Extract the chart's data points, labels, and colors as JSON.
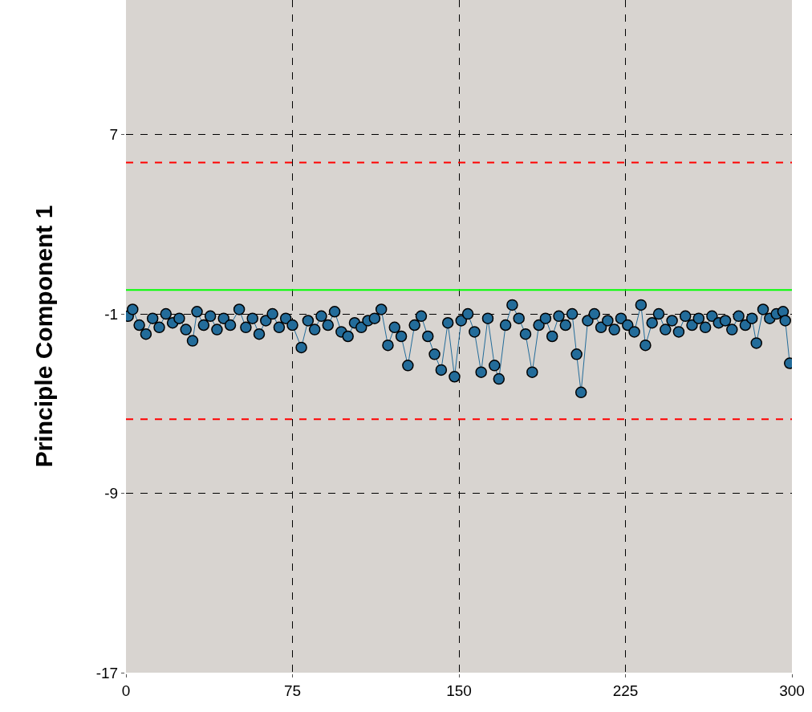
{
  "chart_data": {
    "type": "line",
    "ylabel": "Principle Component 1",
    "marker": "circle",
    "grid": true,
    "xlim": [
      0,
      300
    ],
    "xticks": [
      0,
      75,
      150,
      225,
      300
    ],
    "ylim": [
      -17,
      13
    ],
    "yticks": [
      7,
      -1,
      -9,
      -17
    ],
    "ref_lines": [
      {
        "axis": "y",
        "value": 5.75,
        "color": "#ff0000",
        "line_style": "dashed"
      },
      {
        "axis": "y",
        "value": -5.7,
        "color": "#ff0000",
        "line_style": "dashed"
      },
      {
        "axis": "y",
        "value": 0.07,
        "color": "#00ff00",
        "line_style": "solid"
      }
    ],
    "series": [
      {
        "color": "#236c9a",
        "x": [
          1,
          3,
          6,
          9,
          12,
          15,
          18,
          21,
          24,
          27,
          30,
          32,
          35,
          38,
          41,
          44,
          47,
          51,
          54,
          57,
          60,
          63,
          66,
          69,
          72,
          75,
          79,
          82,
          85,
          88,
          91,
          94,
          97,
          100,
          103,
          106,
          109,
          112,
          115,
          118,
          121,
          124,
          127,
          130,
          133,
          136,
          139,
          142,
          145,
          148,
          151,
          154,
          157,
          160,
          163,
          166,
          168,
          171,
          174,
          177,
          180,
          183,
          186,
          189,
          192,
          195,
          198,
          201,
          203,
          205,
          208,
          211,
          214,
          217,
          220,
          223,
          226,
          229,
          232,
          234,
          237,
          240,
          243,
          246,
          249,
          252,
          255,
          258,
          261,
          264,
          267,
          270,
          273,
          276,
          279,
          282,
          284,
          287,
          290,
          293,
          296,
          297,
          299
        ],
        "values": [
          -1.1,
          -0.8,
          -1.5,
          -1.9,
          -1.2,
          -1.6,
          -1.0,
          -1.4,
          -1.2,
          -1.7,
          -2.2,
          -0.9,
          -1.5,
          -1.1,
          -1.7,
          -1.2,
          -1.5,
          -0.8,
          -1.6,
          -1.2,
          -1.9,
          -1.3,
          -1.0,
          -1.6,
          -1.2,
          -1.5,
          -2.5,
          -1.3,
          -1.7,
          -1.1,
          -1.5,
          -0.9,
          -1.8,
          -2.0,
          -1.4,
          -1.6,
          -1.3,
          -1.2,
          -0.8,
          -2.4,
          -1.6,
          -2.0,
          -3.3,
          -1.5,
          -1.1,
          -2.0,
          -2.8,
          -3.5,
          -1.4,
          -3.8,
          -1.3,
          -1.0,
          -1.8,
          -3.6,
          -1.2,
          -3.3,
          -3.9,
          -1.5,
          -0.6,
          -1.2,
          -1.9,
          -3.6,
          -1.5,
          -1.2,
          -2.0,
          -1.1,
          -1.5,
          -1.0,
          -2.8,
          -4.5,
          -1.3,
          -1.0,
          -1.6,
          -1.3,
          -1.7,
          -1.2,
          -1.5,
          -1.8,
          -0.6,
          -2.4,
          -1.4,
          -1.0,
          -1.7,
          -1.3,
          -1.8,
          -1.1,
          -1.5,
          -1.2,
          -1.6,
          -1.1,
          -1.4,
          -1.3,
          -1.7,
          -1.1,
          -1.5,
          -1.2,
          -2.3,
          -0.8,
          -1.2,
          -1.0,
          -0.9,
          -1.3,
          -3.2
        ]
      }
    ]
  }
}
